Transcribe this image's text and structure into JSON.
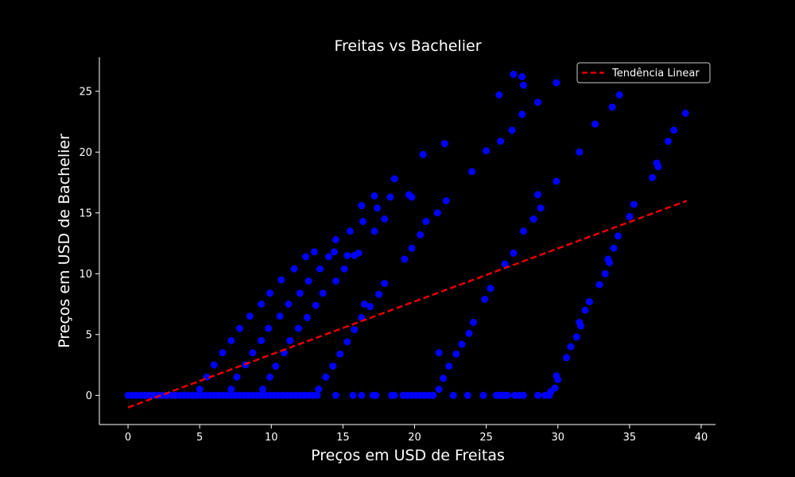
{
  "chart_data": {
    "type": "scatter",
    "title": "Freitas vs Bachelier",
    "xlabel": "Preços em USD de Freitas",
    "ylabel": "Preços em USD de Bachelier",
    "xlim": [
      -2,
      41
    ],
    "ylim": [
      -2.4,
      27.8
    ],
    "xticks": [
      0,
      5,
      10,
      15,
      20,
      25,
      30,
      35,
      40
    ],
    "yticks": [
      0,
      5,
      10,
      15,
      20,
      25
    ],
    "grid": false,
    "legend_position": "top-right",
    "colors": {
      "background": "#000000",
      "points": "#0000ff",
      "trend": "#e60000",
      "axes": "#ffffff"
    },
    "series": [
      {
        "kind": "scatter",
        "points": [
          [
            0,
            0
          ],
          [
            0.3,
            0
          ],
          [
            0.6,
            0
          ],
          [
            0.9,
            0
          ],
          [
            1.2,
            0
          ],
          [
            1.5,
            0
          ],
          [
            1.8,
            0
          ],
          [
            2.1,
            0
          ],
          [
            2.4,
            0
          ],
          [
            2.7,
            0
          ],
          [
            3,
            0
          ],
          [
            3.3,
            0
          ],
          [
            3.6,
            0
          ],
          [
            3.9,
            0
          ],
          [
            4.2,
            0
          ],
          [
            4.5,
            0
          ],
          [
            4.8,
            0
          ],
          [
            5.1,
            0
          ],
          [
            5.4,
            0
          ],
          [
            5.7,
            0
          ],
          [
            6,
            0
          ],
          [
            6.3,
            0
          ],
          [
            6.6,
            0
          ],
          [
            6.9,
            0
          ],
          [
            7.2,
            0
          ],
          [
            7.5,
            0
          ],
          [
            7.8,
            0
          ],
          [
            8.1,
            0
          ],
          [
            8.4,
            0
          ],
          [
            8.7,
            0
          ],
          [
            9,
            0
          ],
          [
            9.3,
            0
          ],
          [
            9.6,
            0
          ],
          [
            9.9,
            0
          ],
          [
            10.2,
            0
          ],
          [
            10.5,
            0
          ],
          [
            10.8,
            0
          ],
          [
            11.1,
            0
          ],
          [
            11.4,
            0
          ],
          [
            11.7,
            0
          ],
          [
            12,
            0
          ],
          [
            12.3,
            0
          ],
          [
            12.6,
            0
          ],
          [
            12.9,
            0
          ],
          [
            13.2,
            0
          ],
          [
            14.5,
            0
          ],
          [
            15.7,
            0
          ],
          [
            16.3,
            0
          ],
          [
            17.1,
            0
          ],
          [
            17.3,
            0
          ],
          [
            18.4,
            0
          ],
          [
            18.6,
            0
          ],
          [
            19.2,
            0
          ],
          [
            19.5,
            0
          ],
          [
            19.8,
            0
          ],
          [
            20.1,
            0
          ],
          [
            20.4,
            0
          ],
          [
            20.7,
            0
          ],
          [
            21,
            0
          ],
          [
            21.3,
            0
          ],
          [
            22.7,
            0
          ],
          [
            23.7,
            0
          ],
          [
            24.8,
            0
          ],
          [
            25.7,
            0
          ],
          [
            25.9,
            0
          ],
          [
            26.1,
            0
          ],
          [
            26.3,
            0
          ],
          [
            26.5,
            0
          ],
          [
            27,
            0
          ],
          [
            27.3,
            0
          ],
          [
            27.6,
            0
          ],
          [
            28.6,
            0
          ],
          [
            29.1,
            0
          ],
          [
            29.4,
            0
          ],
          [
            5,
            0.5
          ],
          [
            5.5,
            1.5
          ],
          [
            6,
            2.5
          ],
          [
            6.6,
            3.5
          ],
          [
            7.2,
            4.5
          ],
          [
            7.8,
            5.5
          ],
          [
            8.5,
            6.5
          ],
          [
            9.3,
            7.5
          ],
          [
            9.9,
            8.4
          ],
          [
            10.7,
            9.5
          ],
          [
            11.6,
            10.4
          ],
          [
            12.4,
            11.4
          ],
          [
            13.0,
            11.8
          ],
          [
            7.2,
            0.5
          ],
          [
            7.6,
            1.5
          ],
          [
            8.2,
            2.5
          ],
          [
            8.7,
            3.5
          ],
          [
            9.3,
            4.5
          ],
          [
            9.8,
            5.5
          ],
          [
            10.6,
            6.5
          ],
          [
            11.2,
            7.5
          ],
          [
            12.0,
            8.4
          ],
          [
            12.6,
            9.4
          ],
          [
            13.4,
            10.4
          ],
          [
            14.0,
            11.4
          ],
          [
            14.4,
            11.8
          ],
          [
            14.5,
            12.8
          ],
          [
            15.5,
            13.5
          ],
          [
            15.3,
            11.5
          ],
          [
            16.3,
            15.6
          ],
          [
            9.4,
            0.5
          ],
          [
            9.9,
            1.5
          ],
          [
            10.3,
            2.4
          ],
          [
            10.9,
            3.5
          ],
          [
            11.3,
            4.5
          ],
          [
            11.9,
            5.5
          ],
          [
            12.5,
            6.4
          ],
          [
            13.1,
            7.4
          ],
          [
            13.6,
            8.4
          ],
          [
            14.5,
            9.4
          ],
          [
            15.1,
            10.4
          ],
          [
            15.8,
            11.5
          ],
          [
            16.1,
            11.7
          ],
          [
            16.4,
            14.3
          ],
          [
            17.2,
            13.5
          ],
          [
            17.4,
            15.4
          ],
          [
            17.9,
            14.5
          ],
          [
            17.2,
            16.4
          ],
          [
            18.3,
            16.3
          ],
          [
            18.6,
            17.8
          ],
          [
            13.3,
            0.5
          ],
          [
            13.8,
            1.5
          ],
          [
            14.3,
            2.4
          ],
          [
            14.8,
            3.4
          ],
          [
            15.3,
            4.4
          ],
          [
            15.8,
            5.4
          ],
          [
            16.3,
            6.4
          ],
          [
            16.5,
            7.5
          ],
          [
            16.9,
            7.3
          ],
          [
            17.5,
            8.3
          ],
          [
            17.9,
            9.2
          ],
          [
            19.3,
            11.2
          ],
          [
            19.8,
            12.1
          ],
          [
            20.4,
            13.2
          ],
          [
            20.8,
            14.3
          ],
          [
            21.6,
            15.0
          ],
          [
            22.2,
            16.0
          ],
          [
            19.6,
            16.5
          ],
          [
            19.8,
            16.3
          ],
          [
            20.6,
            19.8
          ],
          [
            22.1,
            20.7
          ],
          [
            21.7,
            0.5
          ],
          [
            22.0,
            1.4
          ],
          [
            22.4,
            2.4
          ],
          [
            22.9,
            3.4
          ],
          [
            23.3,
            4.2
          ],
          [
            23.8,
            5.1
          ],
          [
            24.1,
            6.0
          ],
          [
            24.9,
            7.9
          ],
          [
            25.3,
            8.8
          ],
          [
            26.3,
            10.8
          ],
          [
            26.9,
            11.7
          ],
          [
            27.6,
            13.5
          ],
          [
            28.3,
            14.5
          ],
          [
            28.8,
            15.4
          ],
          [
            28.6,
            16.5
          ],
          [
            25.0,
            20.1
          ],
          [
            26.0,
            20.9
          ],
          [
            26.8,
            21.8
          ],
          [
            27.5,
            23.1
          ],
          [
            28.6,
            24.1
          ],
          [
            25.9,
            24.7
          ],
          [
            27.5,
            26.2
          ],
          [
            27.6,
            25.5
          ],
          [
            26.9,
            26.4
          ],
          [
            24.0,
            18.4
          ],
          [
            21.7,
            3.5
          ],
          [
            29.5,
            0.3
          ],
          [
            29.8,
            0.6
          ],
          [
            29.9,
            1.6
          ],
          [
            30.0,
            1.3
          ],
          [
            30.6,
            3.1
          ],
          [
            30.9,
            4.0
          ],
          [
            31.3,
            4.8
          ],
          [
            31.5,
            6.0
          ],
          [
            31.6,
            5.7
          ],
          [
            31.9,
            7.0
          ],
          [
            32.2,
            7.7
          ],
          [
            32.9,
            9.1
          ],
          [
            33.3,
            10.0
          ],
          [
            33.5,
            11.2
          ],
          [
            33.6,
            10.9
          ],
          [
            33.9,
            12.1
          ],
          [
            34.2,
            13.1
          ],
          [
            35.0,
            14.7
          ],
          [
            35.3,
            15.7
          ],
          [
            29.9,
            17.6
          ],
          [
            31.5,
            20.0
          ],
          [
            32.6,
            22.3
          ],
          [
            33.8,
            23.7
          ],
          [
            34.3,
            24.7
          ],
          [
            29.9,
            25.7
          ],
          [
            36.6,
            17.9
          ],
          [
            36.9,
            19.1
          ],
          [
            37.0,
            18.8
          ],
          [
            37.7,
            20.9
          ],
          [
            38.1,
            21.8
          ],
          [
            38.9,
            23.2
          ]
        ]
      },
      {
        "kind": "line",
        "name": "Tendência Linear",
        "style": "dashed",
        "x": [
          0,
          39
        ],
        "y": [
          -1.0,
          16.0
        ]
      }
    ]
  }
}
